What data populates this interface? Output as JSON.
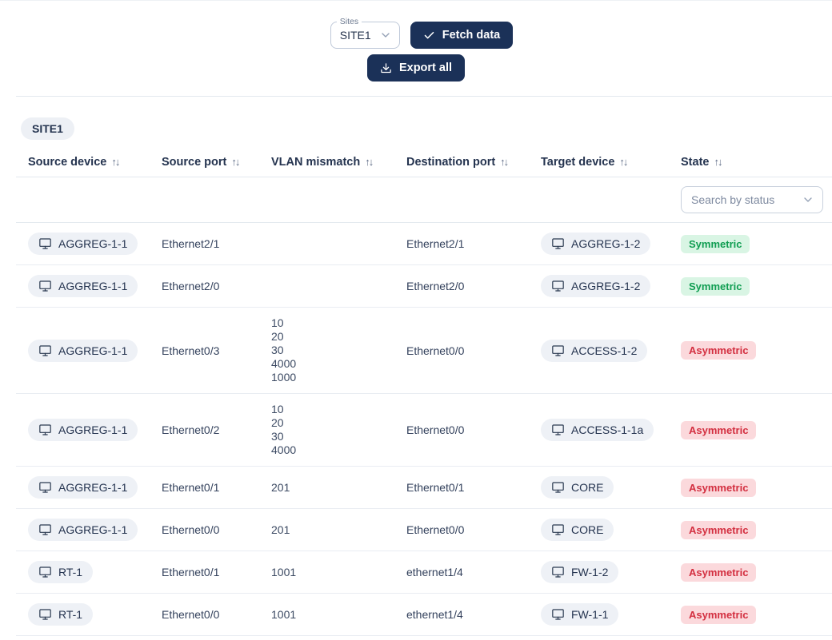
{
  "toolbar": {
    "sites_label": "Sites",
    "sites_value": "SITE1",
    "fetch_label": "Fetch data",
    "export_label": "Export all"
  },
  "site_badge": "SITE1",
  "table": {
    "sort_icon": "↑↓",
    "columns": [
      {
        "label": "Source device"
      },
      {
        "label": "Source port"
      },
      {
        "label": "VLAN mismatch"
      },
      {
        "label": "Destination port"
      },
      {
        "label": "Target device"
      },
      {
        "label": "State"
      }
    ],
    "filter": {
      "placeholder": "Search by status"
    },
    "rows": [
      {
        "source_device": "AGGREG-1-1",
        "source_port": "Ethernet2/1",
        "vlans": [],
        "dest_port": "Ethernet2/1",
        "target_device": "AGGREG-1-2",
        "state": "Symmetric"
      },
      {
        "source_device": "AGGREG-1-1",
        "source_port": "Ethernet2/0",
        "vlans": [],
        "dest_port": "Ethernet2/0",
        "target_device": "AGGREG-1-2",
        "state": "Symmetric"
      },
      {
        "source_device": "AGGREG-1-1",
        "source_port": "Ethernet0/3",
        "vlans": [
          "10",
          "20",
          "30",
          "4000",
          "1000"
        ],
        "dest_port": "Ethernet0/0",
        "target_device": "ACCESS-1-2",
        "state": "Asymmetric"
      },
      {
        "source_device": "AGGREG-1-1",
        "source_port": "Ethernet0/2",
        "vlans": [
          "10",
          "20",
          "30",
          "4000"
        ],
        "dest_port": "Ethernet0/0",
        "target_device": "ACCESS-1-1a",
        "state": "Asymmetric"
      },
      {
        "source_device": "AGGREG-1-1",
        "source_port": "Ethernet0/1",
        "vlans": [
          "201"
        ],
        "dest_port": "Ethernet0/1",
        "target_device": "CORE",
        "state": "Asymmetric"
      },
      {
        "source_device": "AGGREG-1-1",
        "source_port": "Ethernet0/0",
        "vlans": [
          "201"
        ],
        "dest_port": "Ethernet0/0",
        "target_device": "CORE",
        "state": "Asymmetric"
      },
      {
        "source_device": "RT-1",
        "source_port": "Ethernet0/1",
        "vlans": [
          "1001"
        ],
        "dest_port": "ethernet1/4",
        "target_device": "FW-1-2",
        "state": "Asymmetric"
      },
      {
        "source_device": "RT-1",
        "source_port": "Ethernet0/0",
        "vlans": [
          "1001"
        ],
        "dest_port": "ethernet1/4",
        "target_device": "FW-1-1",
        "state": "Asymmetric"
      }
    ]
  },
  "colors": {
    "accent_navy": "#1b3158",
    "symmetric_bg": "#d9f5e4",
    "symmetric_text": "#0f9d51",
    "asymmetric_bg": "#fbd9dc",
    "asymmetric_text": "#d32f40",
    "chip_bg": "#eef1f6",
    "divider": "#e3e9ef"
  }
}
